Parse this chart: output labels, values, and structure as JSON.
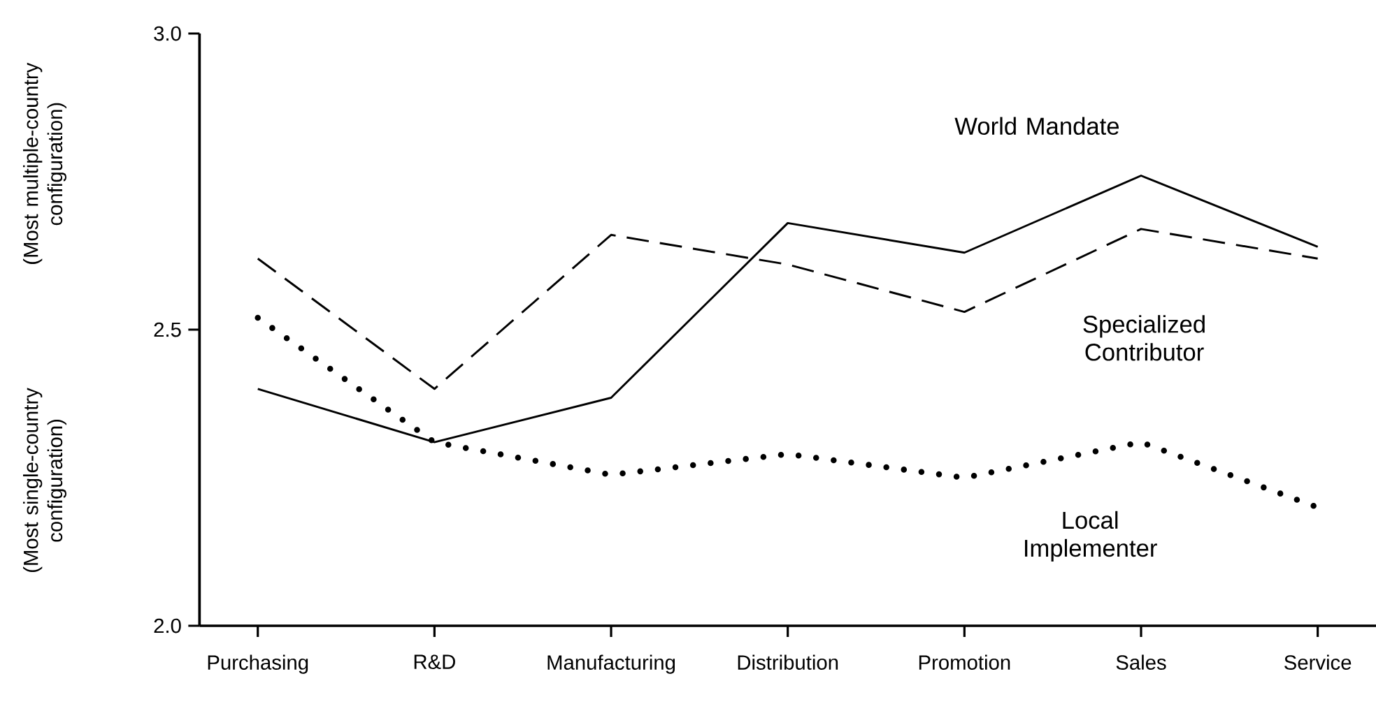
{
  "chart_data": {
    "type": "line",
    "ylabel": "(Most single-country configuration)",
    "annotations": [
      "(Most multiple-country configuration)"
    ],
    "categories": [
      "Purchasing",
      "R&D",
      "Manufacturing",
      "Distribution",
      "Promotion",
      "Sales",
      "Service"
    ],
    "series": [
      {
        "name": "World Mandate",
        "color": "#000000",
        "line_style": "solid",
        "values": [
          2.4,
          2.31,
          2.385,
          2.68,
          2.63,
          2.76,
          2.64
        ]
      },
      {
        "name": "Specialized Contributor",
        "color": "#000000",
        "line_style": "dashed",
        "values": [
          2.62,
          2.4,
          2.66,
          2.61,
          2.53,
          2.67,
          2.62
        ]
      },
      {
        "name": "Local Implementer",
        "color": "#000000",
        "line_style": "dotted",
        "values": [
          2.52,
          2.31,
          2.255,
          2.29,
          2.25,
          2.31,
          2.2
        ]
      }
    ],
    "ylim": [
      2.0,
      3.0
    ],
    "yticks": [
      {
        "value": 2.0,
        "label": "2.0"
      },
      {
        "value": 2.5,
        "label": "2.5"
      },
      {
        "value": 3.0,
        "label": "3.0"
      }
    ],
    "grid": false,
    "legend": false,
    "marker": "none"
  }
}
